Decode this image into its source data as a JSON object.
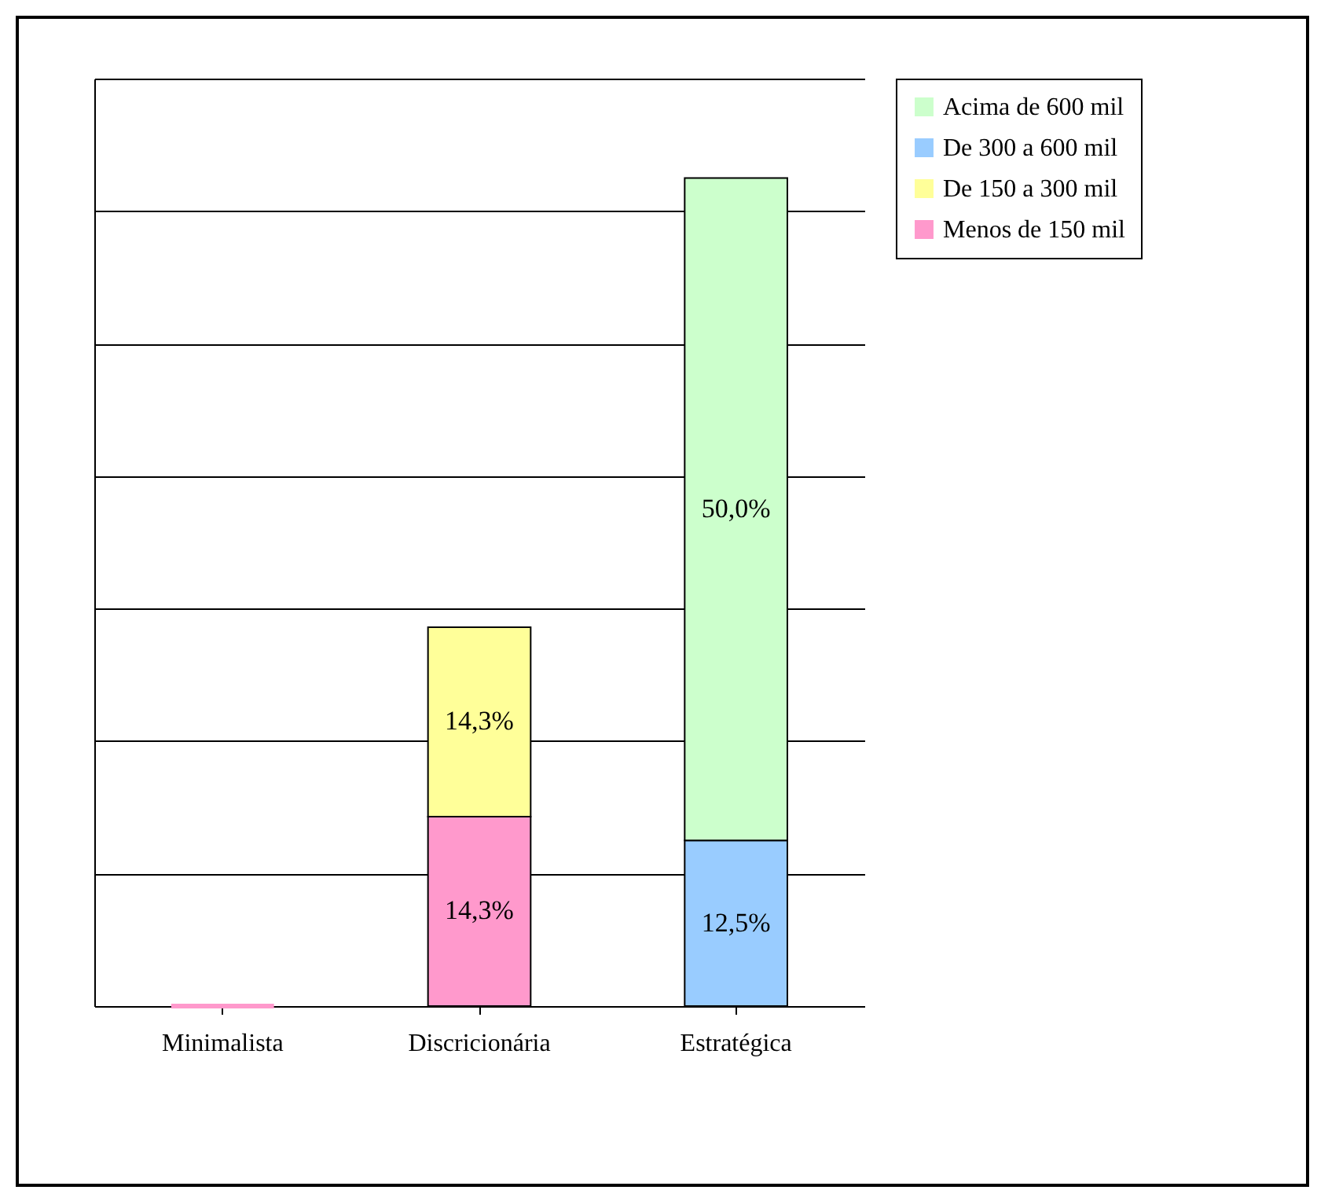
{
  "chart_data": {
    "type": "bar",
    "stacked": true,
    "categories": [
      "Minimalista",
      "Discricionária",
      "Estratégica"
    ],
    "series": [
      {
        "name": "Menos de 150 mil",
        "color": "#ff99cc",
        "values": [
          0,
          14.3,
          null
        ],
        "value_labels": [
          null,
          "14,3%",
          null
        ]
      },
      {
        "name": "De 150 a 300 mil",
        "color": "#ffff99",
        "values": [
          null,
          14.3,
          null
        ],
        "value_labels": [
          null,
          "14,3%",
          null
        ]
      },
      {
        "name": "De 300 a 600 mil",
        "color": "#99ccff",
        "values": [
          null,
          null,
          12.5
        ],
        "value_labels": [
          null,
          null,
          "12,5%"
        ]
      },
      {
        "name": "Acima de 600 mil",
        "color": "#ccffcc",
        "values": [
          null,
          null,
          50.0
        ],
        "value_labels": [
          null,
          null,
          "50,0%"
        ]
      }
    ],
    "ylim": [
      0,
      70
    ],
    "yticks": [
      {
        "value": 0,
        "label": null
      },
      {
        "value": 10,
        "label": null
      },
      {
        "value": 20,
        "label": null
      },
      {
        "value": 30,
        "label": null
      },
      {
        "value": 40,
        "label": null
      },
      {
        "value": 50,
        "label": null
      },
      {
        "value": 60,
        "label": null
      },
      {
        "value": 70,
        "label": null
      }
    ],
    "grid": "y",
    "legend": "top right",
    "tick_labels": "x"
  }
}
